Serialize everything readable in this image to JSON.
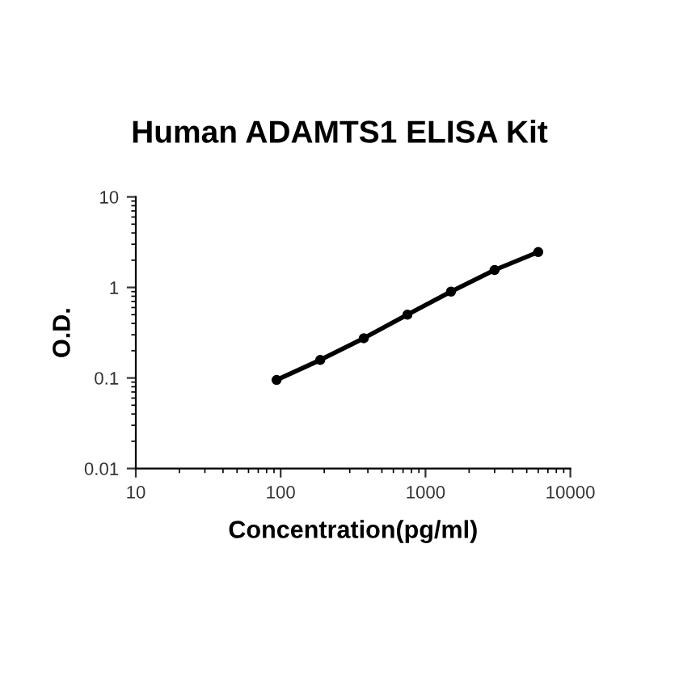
{
  "chart_data": {
    "type": "line",
    "title": "Human ADAMTS1 ELISA Kit",
    "xlabel": "Concentration(pg/ml)",
    "ylabel": "O.D.",
    "log": "xy",
    "xlim": [
      10,
      10000
    ],
    "xticks": [
      10,
      100,
      1000,
      10000
    ],
    "ylim": [
      0.01,
      10
    ],
    "yticks": [
      0.01,
      0.1,
      1,
      10
    ],
    "x": [
      93.75,
      187.5,
      375,
      750,
      1500,
      3000,
      6000
    ],
    "series": [
      {
        "color": "#000000",
        "values": [
          0.095,
          0.158,
          0.275,
          0.5,
          0.9,
          1.56,
          2.46
        ]
      }
    ],
    "marker": "circle",
    "line_style": "solid",
    "grid": false,
    "legend": false
  }
}
